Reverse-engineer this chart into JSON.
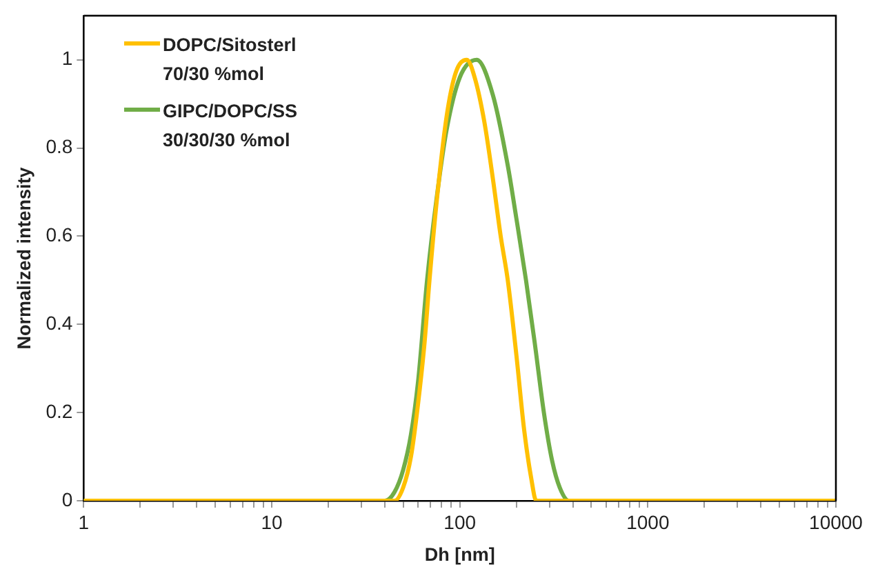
{
  "chart_data": {
    "type": "line",
    "xlabel": "Dh [nm]",
    "ylabel": "Normalized intensity",
    "log": "x",
    "xlim": [
      1,
      10000
    ],
    "xticks": [
      1,
      {
        "value": 2,
        "label": null
      },
      {
        "value": 3,
        "label": null
      },
      {
        "value": 4,
        "label": null
      },
      {
        "value": 5,
        "label": null
      },
      {
        "value": 6,
        "label": null
      },
      {
        "value": 7,
        "label": null
      },
      {
        "value": 8,
        "label": null
      },
      {
        "value": 9,
        "label": null
      },
      10,
      {
        "value": 20,
        "label": null
      },
      {
        "value": 30,
        "label": null
      },
      {
        "value": 40,
        "label": null
      },
      {
        "value": 50,
        "label": null
      },
      {
        "value": 60,
        "label": null
      },
      {
        "value": 70,
        "label": null
      },
      {
        "value": 80,
        "label": null
      },
      {
        "value": 90,
        "label": null
      },
      100,
      {
        "value": 200,
        "label": null
      },
      {
        "value": 300,
        "label": null
      },
      {
        "value": 400,
        "label": null
      },
      {
        "value": 500,
        "label": null
      },
      {
        "value": 600,
        "label": null
      },
      {
        "value": 700,
        "label": null
      },
      {
        "value": 800,
        "label": null
      },
      {
        "value": 900,
        "label": null
      },
      1000,
      {
        "value": 2000,
        "label": null
      },
      {
        "value": 3000,
        "label": null
      },
      {
        "value": 4000,
        "label": null
      },
      {
        "value": 5000,
        "label": null
      },
      {
        "value": 6000,
        "label": null
      },
      {
        "value": 7000,
        "label": null
      },
      {
        "value": 8000,
        "label": null
      },
      {
        "value": 9000,
        "label": null
      },
      10000
    ],
    "ylim": [
      0,
      1.1
    ],
    "yticks": [
      0,
      0.2,
      0.4,
      0.6,
      0.8,
      1
    ],
    "grid": false,
    "legend": "top left",
    "marker": "none",
    "line_style": "solid",
    "series": [
      {
        "name": "DOPC/Sitosterl 70/30 %mol",
        "color": "#ffc000",
        "x": [
          1,
          45,
          50,
          55,
          60,
          65,
          69,
          75,
          85,
          95,
          109,
          120,
          135,
          150,
          165,
          180,
          200,
          220,
          240,
          255,
          10000
        ],
        "values": [
          0,
          0,
          0.03,
          0.1,
          0.22,
          0.36,
          0.5,
          0.67,
          0.87,
          0.97,
          1,
          0.96,
          0.86,
          0.73,
          0.6,
          0.5,
          0.33,
          0.16,
          0.05,
          0,
          0
        ]
      },
      {
        "name": "GIPC/DOPC/SS 30/30/30 %mol",
        "color": "#70ad47",
        "x": [
          1,
          40,
          45,
          50,
          55,
          60,
          67,
          75,
          85,
          100,
          123,
          150,
          180,
          200,
          225,
          250,
          280,
          310,
          340,
          380,
          10000
        ],
        "values": [
          0,
          0,
          0.02,
          0.07,
          0.15,
          0.27,
          0.5,
          0.68,
          0.84,
          0.96,
          1,
          0.92,
          0.76,
          0.64,
          0.5,
          0.36,
          0.2,
          0.09,
          0.03,
          0,
          0
        ]
      }
    ]
  }
}
